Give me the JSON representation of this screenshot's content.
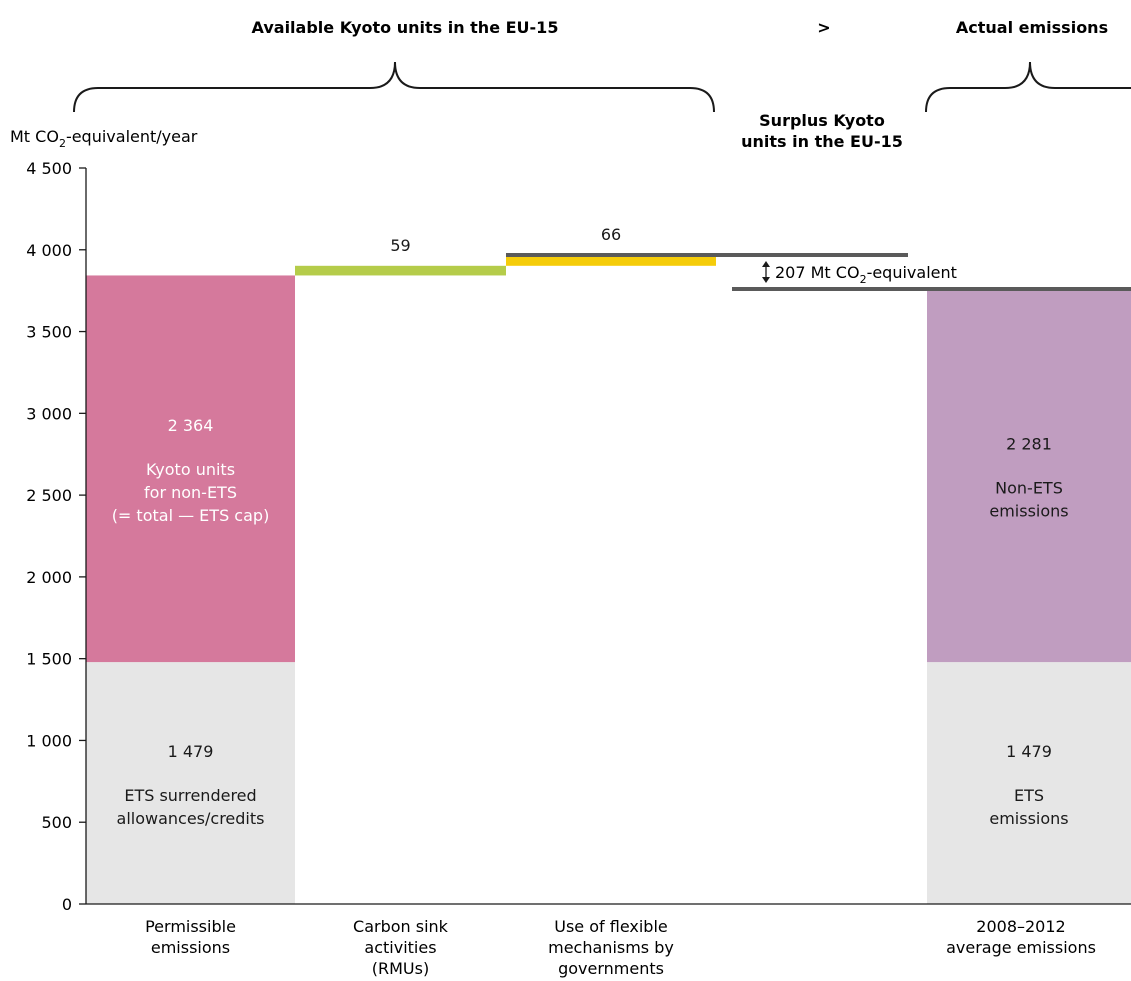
{
  "headers": {
    "available": "Available Kyoto units in the EU-15",
    "gt": ">",
    "actual": "Actual emissions",
    "surplus_line1": "Surplus Kyoto",
    "surplus_line2": "units in the EU-15"
  },
  "annotation": {
    "surplus_value": "207 Mt CO",
    "surplus_sub": "2",
    "surplus_suffix": "-equivalent"
  },
  "chart_data": {
    "type": "bar",
    "ylabel": "Mt CO",
    "ylabel_sub": "2",
    "ylabel_suffix": "-equivalent/year",
    "ylim": [
      0,
      4500
    ],
    "yticks": [
      0,
      500,
      1000,
      1500,
      2000,
      2500,
      3000,
      3500,
      4000,
      4500
    ],
    "ytick_labels": [
      "0",
      "500",
      "1 000",
      "1 500",
      "2 000",
      "2 500",
      "3 000",
      "3 500",
      "4 000",
      "4 500"
    ],
    "categories": [
      [
        "Permissible",
        "emissions"
      ],
      [
        "Carbon sink",
        "activities",
        "(RMUs)"
      ],
      [
        "Use of flexible",
        "mechanisms by",
        "governments"
      ],
      [
        "2008–2012",
        "average emissions"
      ]
    ],
    "segments": [
      {
        "bar": 0,
        "base": 0,
        "value": 1479,
        "color": "#e6e6e6",
        "text_color": "#1a1a1a",
        "label": "1 479",
        "desc": [
          "ETS surrendered",
          "allowances/credits"
        ]
      },
      {
        "bar": 0,
        "base": 1479,
        "value": 2364,
        "color": "#d5799c",
        "text_color": "#ffffff",
        "label": "2 364",
        "desc": [
          "Kyoto units",
          "for non-ETS",
          "(= total — ETS cap)"
        ]
      },
      {
        "bar": 1,
        "base": 3843,
        "value": 59,
        "color": "#b5cc4a",
        "text_color": "#1a1a1a",
        "label": "59",
        "desc": []
      },
      {
        "bar": 2,
        "base": 3902,
        "value": 66,
        "color": "#f5cc0a",
        "text_color": "#1a1a1a",
        "label": "66",
        "desc": []
      },
      {
        "bar": 3,
        "base": 0,
        "value": 1479,
        "color": "#e6e6e6",
        "text_color": "#1a1a1a",
        "label": "1 479",
        "desc": [
          "ETS",
          "emissions"
        ]
      },
      {
        "bar": 3,
        "base": 1479,
        "value": 2281,
        "color": "#c09dc0",
        "text_color": "#1a1a1a",
        "label": "2 281",
        "desc": [
          "Non-ETS",
          "emissions"
        ]
      }
    ],
    "reference_lines": [
      {
        "value": 3968,
        "color": "#5a5a5a"
      },
      {
        "value": 3760,
        "color": "#5a5a5a"
      }
    ],
    "surplus_value": 207
  }
}
